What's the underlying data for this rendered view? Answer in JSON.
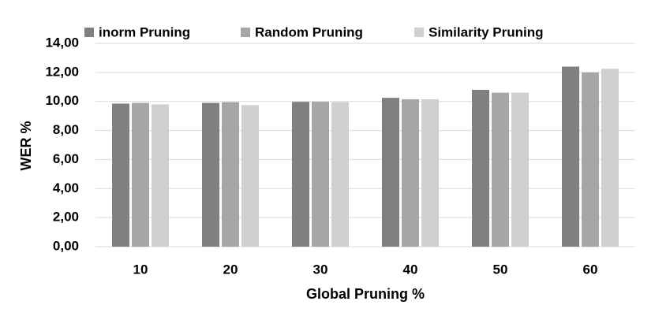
{
  "chart_data": {
    "type": "bar",
    "categories": [
      "10",
      "20",
      "30",
      "40",
      "50",
      "60"
    ],
    "series": [
      {
        "name": "inorm Pruning",
        "color": "#808080",
        "values": [
          9.85,
          9.9,
          9.97,
          10.25,
          10.8,
          12.4
        ]
      },
      {
        "name": "Random Pruning",
        "color": "#a6a6a6",
        "values": [
          9.9,
          9.95,
          9.98,
          10.15,
          10.6,
          12.0
        ]
      },
      {
        "name": "Similarity Pruning",
        "color": "#d0d0d0",
        "values": [
          9.8,
          9.75,
          9.95,
          10.15,
          10.6,
          12.25
        ]
      }
    ],
    "x_label": "Global Pruning %",
    "y_label": "WER %",
    "ylim": [
      0,
      14
    ],
    "yticks": [
      {
        "value": 0,
        "label": "0,00"
      },
      {
        "value": 2,
        "label": "2,00"
      },
      {
        "value": 4,
        "label": "4,00"
      },
      {
        "value": 6,
        "label": "6,00"
      },
      {
        "value": 8,
        "label": "8,00"
      },
      {
        "value": 10,
        "label": "10,00"
      },
      {
        "value": 12,
        "label": "12,00"
      },
      {
        "value": 14,
        "label": "14,00"
      }
    ],
    "grid": true,
    "legend": "top"
  }
}
